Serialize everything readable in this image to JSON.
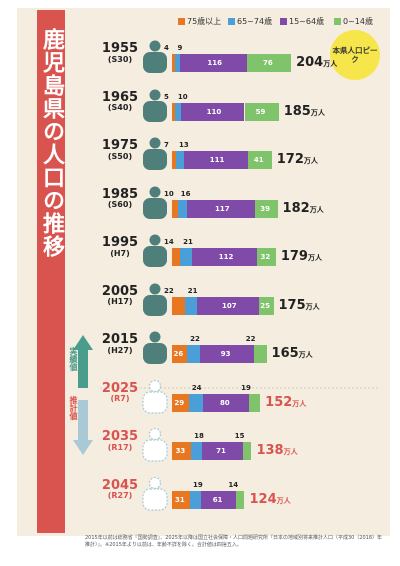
{
  "title": "鹿児島県の人口の推移",
  "legend": [
    {
      "label": "75歳以上",
      "color": "#e87722"
    },
    {
      "label": "65~74歳",
      "color": "#4a9fd8"
    },
    {
      "label": "15~64歳",
      "color": "#7f4aa8"
    },
    {
      "label": "0~14歳",
      "color": "#7fc46b"
    }
  ],
  "peak_note": "本県人口ピーク",
  "actual_mark": "実績値",
  "estimate_mark": "推計値",
  "unit": "万人",
  "footnote": "2015年以前は総務省『国勢調査』、2025年以降は国立社会保障・人口問題研究所『日本の地域別将来推計人口（平成30（2018）年推計）』。※2015年より以前は、年齢不詳を除く。合計値は四捨五入。",
  "chart_data": {
    "type": "bar",
    "orientation": "horizontal",
    "stacked": true,
    "unit": "万人",
    "categories": [
      "1955",
      "1965",
      "1975",
      "1985",
      "1995",
      "2005",
      "2015",
      "2025",
      "2035",
      "2045"
    ],
    "era": [
      "(S30)",
      "(S40)",
      "(S50)",
      "(S60)",
      "(H7)",
      "(H17)",
      "(H27)",
      "(R7)",
      "(R17)",
      "(R27)"
    ],
    "estimate": [
      false,
      false,
      false,
      false,
      false,
      false,
      false,
      true,
      true,
      true
    ],
    "series": [
      {
        "name": "75歳以上",
        "values": [
          4,
          5,
          7,
          10,
          14,
          22,
          26,
          29,
          33,
          31
        ]
      },
      {
        "name": "65~74歳",
        "values": [
          9,
          10,
          13,
          16,
          21,
          21,
          22,
          24,
          18,
          19
        ]
      },
      {
        "name": "15~64歳",
        "values": [
          116,
          110,
          111,
          117,
          112,
          107,
          93,
          80,
          71,
          61
        ]
      },
      {
        "name": "0~14歳",
        "values": [
          76,
          59,
          41,
          39,
          32,
          25,
          22,
          19,
          15,
          14
        ]
      }
    ],
    "totals": [
      204,
      185,
      172,
      182,
      179,
      175,
      165,
      152,
      138,
      124
    ]
  }
}
